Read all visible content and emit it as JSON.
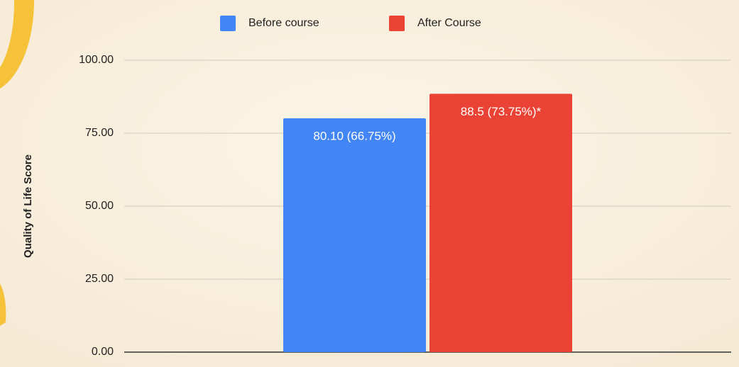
{
  "chart_data": {
    "type": "bar",
    "y_axis_label": "Quality of Life Score",
    "categories": [
      null
    ],
    "series": [
      {
        "name": "Before course",
        "color": "#4285f4",
        "values": [
          80.1
        ],
        "value_labels": [
          "80.10 (66.75%)"
        ]
      },
      {
        "name": "After Course",
        "color": "#ea4335",
        "values": [
          88.5
        ],
        "value_labels": [
          "88.5 (73.75%)*"
        ]
      }
    ],
    "ylim": [
      0,
      100
    ],
    "yticks": [
      {
        "value": 0,
        "label": "0.00"
      },
      {
        "value": 25,
        "label": "25.00"
      },
      {
        "value": 50,
        "label": "50.00"
      },
      {
        "value": 75,
        "label": "75.00"
      },
      {
        "value": 100,
        "label": "100.00"
      }
    ],
    "grid": true,
    "legend": "top"
  }
}
